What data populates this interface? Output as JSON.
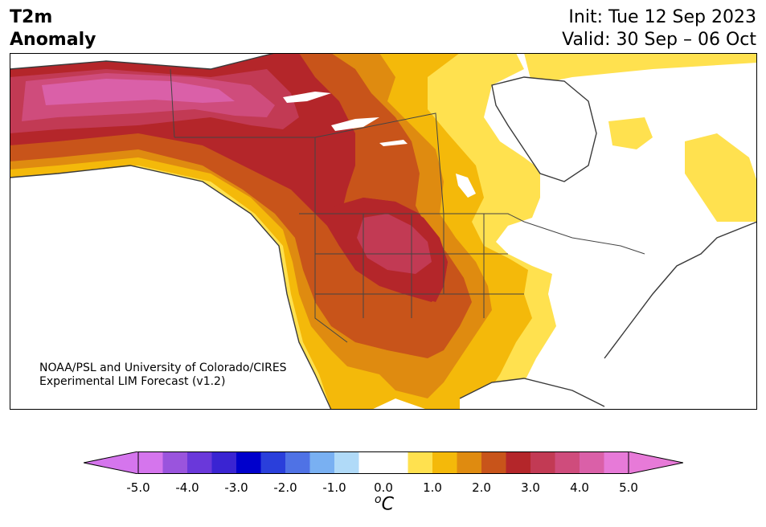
{
  "header": {
    "title_line1": "T2m",
    "title_line2": "Anomaly",
    "init_text": "Init: Tue 12 Sep 2023",
    "valid_text": "Valid: 30 Sep – 06 Oct"
  },
  "credit": {
    "line1": "NOAA/PSL and University of Colorado/CIRES",
    "line2": "Experimental LIM Forecast (v1.2)"
  },
  "colorbar": {
    "unit_sup": "o",
    "unit_main": "C",
    "ticks": [
      "-5.0",
      "-4.0",
      "-3.0",
      "-2.0",
      "-1.0",
      "0.0",
      "1.0",
      "2.0",
      "3.0",
      "4.0",
      "5.0"
    ],
    "colors": [
      "#d575ed",
      "#9a54dd",
      "#6a38da",
      "#3a24d2",
      "#0000cc",
      "#2a3fdb",
      "#4f72e5",
      "#79b0f2",
      "#b0daf8",
      "#ffffff",
      "#ffffff",
      "#ffe14f",
      "#f4b90a",
      "#df8b10",
      "#c8541a",
      "#b4262a",
      "#c23a54",
      "#cf4c7c",
      "#da60a8",
      "#e77ad8"
    ],
    "extend_min_color": "#d575ed",
    "extend_max_color": "#e77ad8"
  },
  "map": {
    "region": "North America",
    "colors": {
      "c0": "#ffffff",
      "c05": "#ffe14f",
      "c10": "#f4b90a",
      "c15": "#df8b10",
      "c20": "#c8541a",
      "c25": "#b4262a",
      "c30": "#c23a54",
      "c35": "#cf4c7c",
      "c40": "#da60a8",
      "coast": "#3a3a3a"
    }
  }
}
